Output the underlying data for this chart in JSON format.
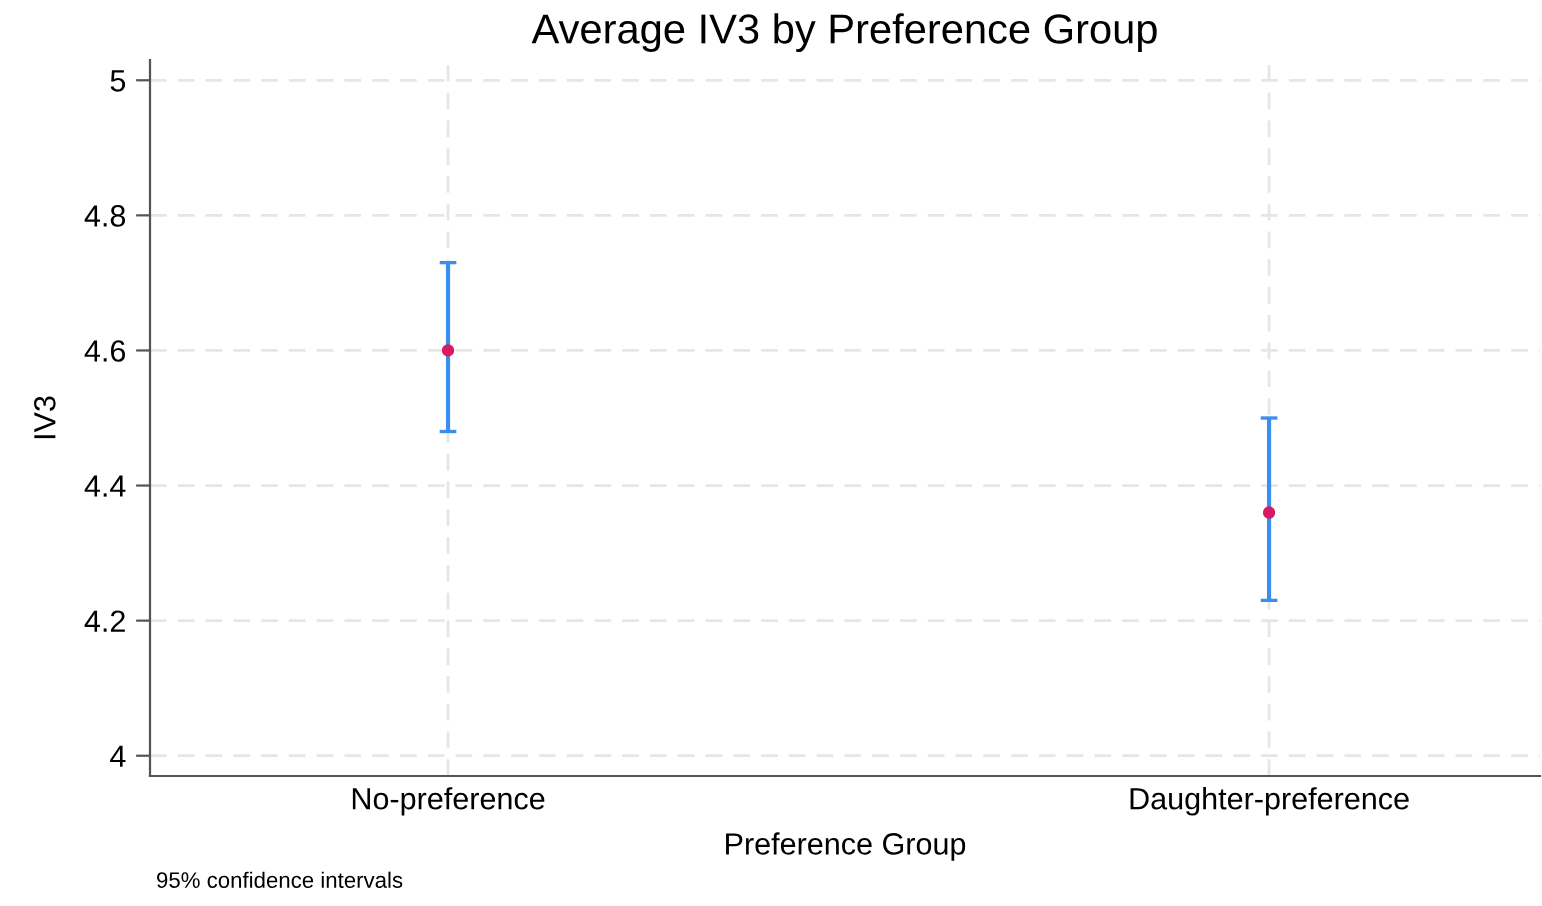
{
  "chart_data": {
    "type": "scatter",
    "title": "Average IV3 by Preference Group",
    "xlabel": "Preference Group",
    "ylabel": "IV3",
    "categories": [
      "No-preference",
      "Daughter-preference"
    ],
    "series": [
      {
        "color": "#d81b60",
        "values": [
          4.6,
          4.36
        ],
        "errors": [
          [
            4.48,
            4.73
          ],
          [
            4.23,
            4.5
          ]
        ]
      }
    ],
    "ylim": [
      3.97,
      5.03
    ],
    "yticks": [
      4,
      4.2,
      4.4,
      4.6,
      4.8,
      5
    ],
    "grid": true,
    "marker": "circle",
    "annotations": [
      "95% confidence intervals"
    ]
  }
}
